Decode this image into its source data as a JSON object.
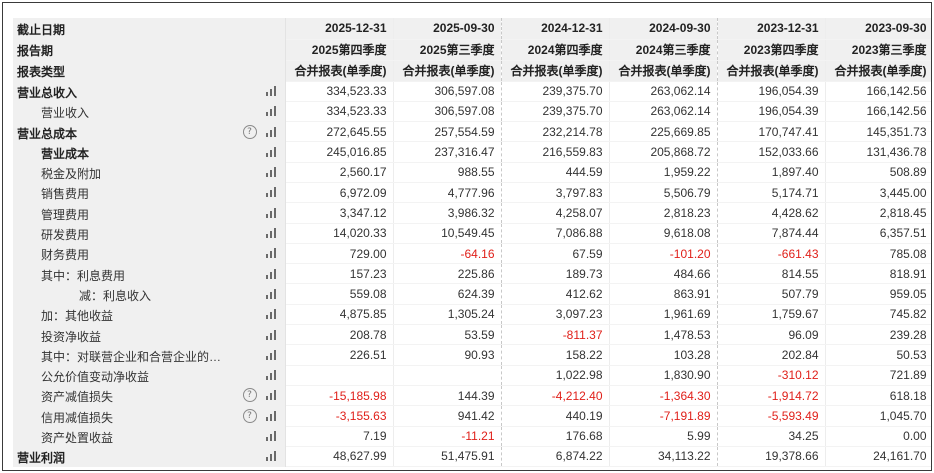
{
  "header": {
    "rows": [
      {
        "label": "截止日期",
        "cells": [
          "2025-12-31",
          "2025-09-30",
          "2024-12-31",
          "2024-09-30",
          "2023-12-31",
          "2023-09-30"
        ]
      },
      {
        "label": "报告期",
        "cells": [
          "2025第四季度",
          "2025第三季度",
          "2024第四季度",
          "2024第三季度",
          "2023第四季度",
          "2023第三季度"
        ]
      },
      {
        "label": "报表类型",
        "cells": [
          "合并报表(单季度)",
          "合并报表(单季度)",
          "合并报表(单季度)",
          "合并报表(单季度)",
          "合并报表(单季度)",
          "合并报表(单季度)"
        ]
      }
    ]
  },
  "rows": [
    {
      "label": "营业总收入",
      "level": "lvl0",
      "help": false,
      "values": [
        "334,523.33",
        "306,597.08",
        "239,375.70",
        "263,062.14",
        "196,054.39",
        "166,142.56"
      ]
    },
    {
      "label": "营业收入",
      "level": "lvl1",
      "help": false,
      "values": [
        "334,523.33",
        "306,597.08",
        "239,375.70",
        "263,062.14",
        "196,054.39",
        "166,142.56"
      ]
    },
    {
      "label": "营业总成本",
      "level": "lvl0",
      "help": true,
      "values": [
        "272,645.55",
        "257,554.59",
        "232,214.78",
        "225,669.85",
        "170,747.41",
        "145,351.73"
      ]
    },
    {
      "label": "营业成本",
      "level": "lvl1b",
      "help": false,
      "values": [
        "245,016.85",
        "237,316.47",
        "216,559.83",
        "205,868.72",
        "152,033.66",
        "131,436.78"
      ]
    },
    {
      "label": "税金及附加",
      "level": "lvl1",
      "help": false,
      "values": [
        "2,560.17",
        "988.55",
        "444.59",
        "1,959.22",
        "1,897.40",
        "508.89"
      ]
    },
    {
      "label": "销售费用",
      "level": "lvl1",
      "help": false,
      "values": [
        "6,972.09",
        "4,777.96",
        "3,797.83",
        "5,506.79",
        "5,174.71",
        "3,445.00"
      ]
    },
    {
      "label": "管理费用",
      "level": "lvl1",
      "help": false,
      "values": [
        "3,347.12",
        "3,986.32",
        "4,258.07",
        "2,818.23",
        "4,428.62",
        "2,818.45"
      ]
    },
    {
      "label": "研发费用",
      "level": "lvl1",
      "help": false,
      "values": [
        "14,020.33",
        "10,549.45",
        "7,086.88",
        "9,618.08",
        "7,874.44",
        "6,357.51"
      ]
    },
    {
      "label": "财务费用",
      "level": "lvl1",
      "help": false,
      "values": [
        "729.00",
        "-64.16",
        "67.59",
        "-101.20",
        "-661.43",
        "785.08"
      ]
    },
    {
      "label": "其中：利息费用",
      "level": "lvl1",
      "help": false,
      "values": [
        "157.23",
        "225.86",
        "189.73",
        "484.66",
        "814.55",
        "818.91"
      ]
    },
    {
      "label": "减：利息收入",
      "level": "lvl2",
      "help": false,
      "values": [
        "559.08",
        "624.39",
        "412.62",
        "863.91",
        "507.79",
        "959.05"
      ]
    },
    {
      "label": "加：其他收益",
      "level": "lvl1",
      "help": false,
      "values": [
        "4,875.85",
        "1,305.24",
        "3,097.23",
        "1,961.69",
        "1,759.67",
        "745.82"
      ]
    },
    {
      "label": "投资净收益",
      "level": "lvl1",
      "help": false,
      "values": [
        "208.78",
        "53.59",
        "-811.37",
        "1,478.53",
        "96.09",
        "239.28"
      ]
    },
    {
      "label": "其中：对联营企业和合营企业的投资…",
      "level": "lvl1",
      "help": false,
      "values": [
        "226.51",
        "90.93",
        "158.22",
        "103.28",
        "202.84",
        "50.53"
      ]
    },
    {
      "label": "公允价值变动净收益",
      "level": "lvl1",
      "help": false,
      "values": [
        "",
        "",
        "1,022.98",
        "1,830.90",
        "-310.12",
        "721.89"
      ]
    },
    {
      "label": "资产减值损失",
      "level": "lvl1",
      "help": true,
      "values": [
        "-15,185.98",
        "144.39",
        "-4,212.40",
        "-1,364.30",
        "-1,914.72",
        "618.18"
      ]
    },
    {
      "label": "信用减值损失",
      "level": "lvl1",
      "help": true,
      "values": [
        "-3,155.63",
        "941.42",
        "440.19",
        "-7,191.89",
        "-5,593.49",
        "1,045.70"
      ]
    },
    {
      "label": "资产处置收益",
      "level": "lvl1",
      "help": false,
      "values": [
        "7.19",
        "-11.21",
        "176.68",
        "5.99",
        "34.25",
        "0.00"
      ]
    },
    {
      "label": "营业利润",
      "level": "lvl0",
      "help": false,
      "values": [
        "48,627.99",
        "51,475.91",
        "6,874.22",
        "34,113.22",
        "19,378.66",
        "24,161.70"
      ]
    }
  ],
  "icons": {
    "chart": "bar-chart-icon",
    "help": "question-circle-icon"
  },
  "colors": {
    "negative": "#e0201a",
    "label_bg": "#f0f0f0"
  }
}
